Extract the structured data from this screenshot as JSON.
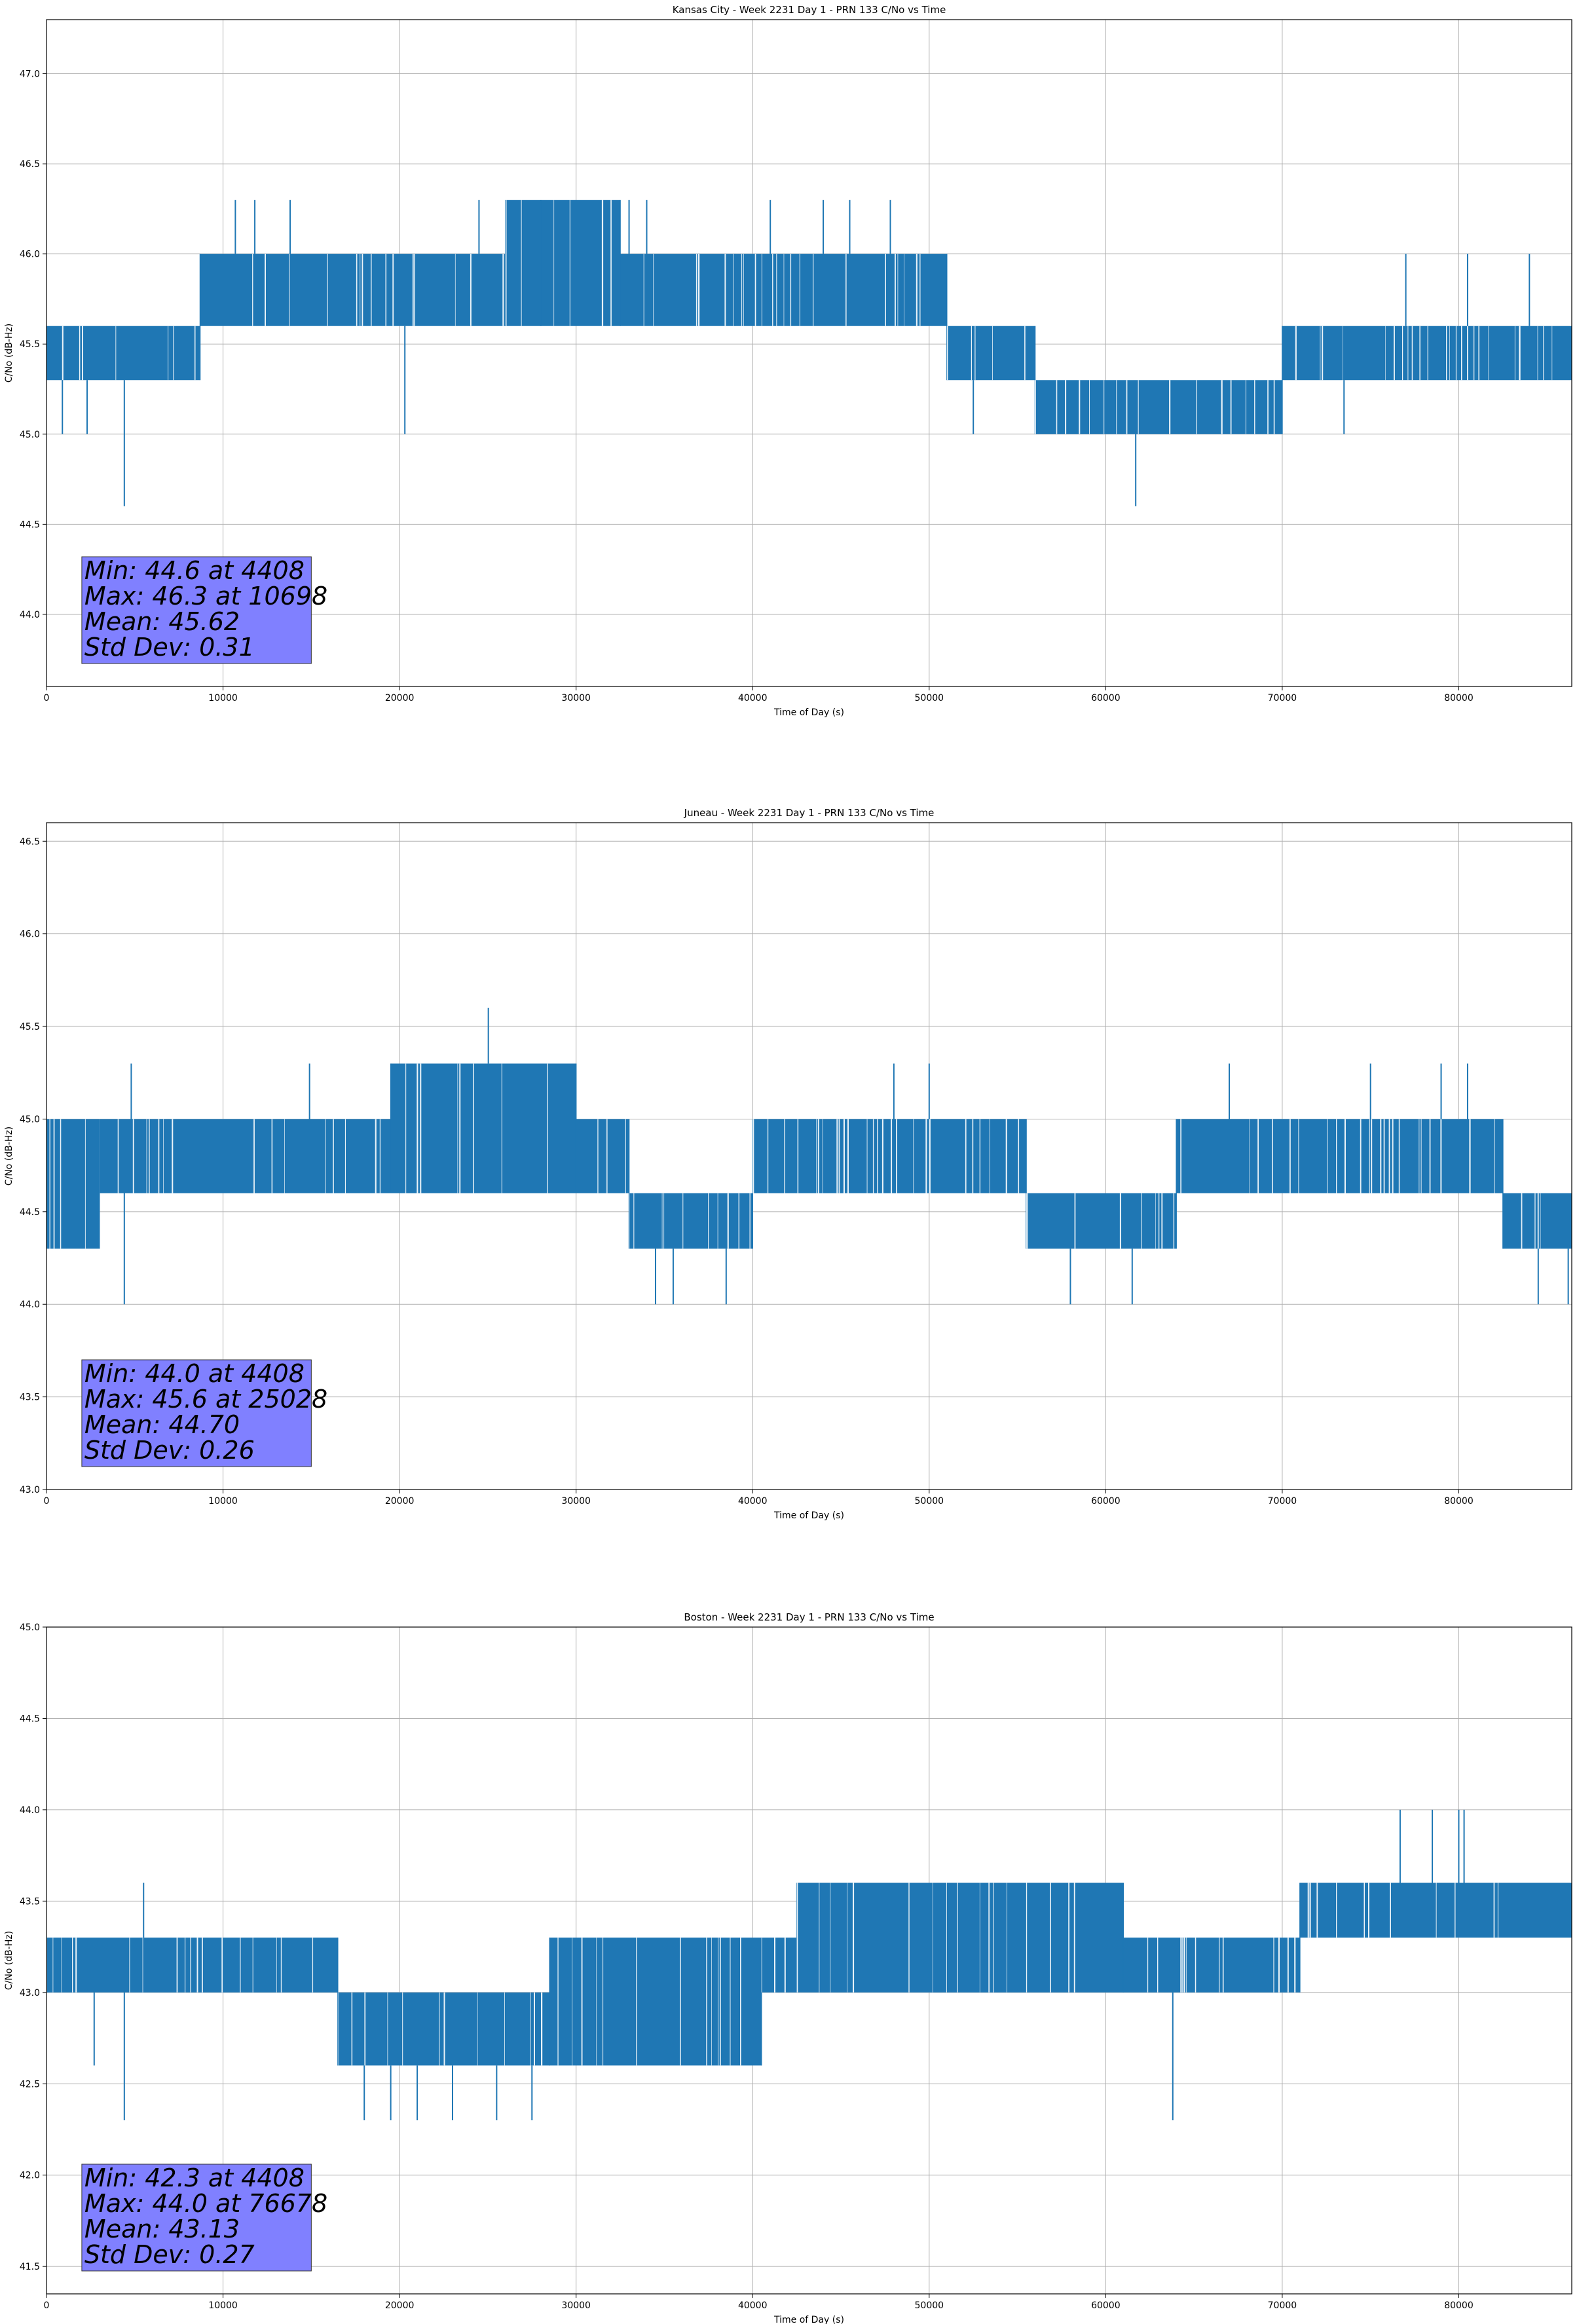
{
  "figure": {
    "background": "#ffffff",
    "line_color": "#1f77b4",
    "stats_box_color": "#8080ff"
  },
  "chart_data": [
    {
      "type": "line",
      "title": "Kansas City - Week 2231 Day 1 - PRN 133 C/No vs Time",
      "xlabel": "Time of Day (s)",
      "ylabel": "C/No (dB-Hz)",
      "xlim": [
        0,
        86400
      ],
      "ylim": [
        43.6,
        47.3
      ],
      "xticks": [
        0,
        10000,
        20000,
        30000,
        40000,
        50000,
        60000,
        70000,
        80000
      ],
      "yticks": [
        "44.0",
        "44.5",
        "45.0",
        "45.5",
        "46.0",
        "46.5",
        "47.0"
      ],
      "grid": true,
      "stats_text": [
        "Min: 44.6 at 4408",
        "Max: 46.3 at 10698",
        "Mean: 45.62",
        "Std Dev: 0.31"
      ],
      "segments": [
        {
          "x0": 0,
          "x1": 8700,
          "low": 45.3,
          "high": 45.6
        },
        {
          "x0": 8700,
          "x1": 24000,
          "low": 45.6,
          "high": 46.0
        },
        {
          "x0": 24000,
          "x1": 26000,
          "low": 45.6,
          "high": 46.0
        },
        {
          "x0": 26000,
          "x1": 32500,
          "low": 45.6,
          "high": 46.3
        },
        {
          "x0": 32500,
          "x1": 39000,
          "low": 45.6,
          "high": 46.0
        },
        {
          "x0": 39000,
          "x1": 47500,
          "low": 45.6,
          "high": 46.0
        },
        {
          "x0": 47500,
          "x1": 51000,
          "low": 45.6,
          "high": 46.0
        },
        {
          "x0": 51000,
          "x1": 56000,
          "low": 45.3,
          "high": 45.6
        },
        {
          "x0": 56000,
          "x1": 70000,
          "low": 45.0,
          "high": 45.3
        },
        {
          "x0": 70000,
          "x1": 86400,
          "low": 45.3,
          "high": 45.6
        }
      ],
      "spikes": [
        [
          900,
          45.0
        ],
        [
          2300,
          45.0
        ],
        [
          4408,
          44.6
        ],
        [
          10698,
          46.3
        ],
        [
          11800,
          46.3
        ],
        [
          13800,
          46.3
        ],
        [
          20300,
          45.0
        ],
        [
          24500,
          46.3
        ],
        [
          28000,
          46.3
        ],
        [
          33000,
          46.3
        ],
        [
          34000,
          46.3
        ],
        [
          41000,
          46.3
        ],
        [
          44000,
          46.3
        ],
        [
          45500,
          46.3
        ],
        [
          47800,
          46.3
        ],
        [
          52500,
          45.0
        ],
        [
          58500,
          45.0
        ],
        [
          61700,
          44.6
        ],
        [
          65500,
          45.0
        ],
        [
          73500,
          45.0
        ],
        [
          77000,
          46.0
        ],
        [
          80500,
          46.0
        ],
        [
          84000,
          46.0
        ]
      ]
    },
    {
      "type": "line",
      "title": "Juneau - Week 2231 Day 1 - PRN 133 C/No vs Time",
      "xlabel": "Time of Day (s)",
      "ylabel": "C/No (dB-Hz)",
      "xlim": [
        0,
        86400
      ],
      "ylim": [
        43.0,
        46.6
      ],
      "xticks": [
        0,
        10000,
        20000,
        30000,
        40000,
        50000,
        60000,
        70000,
        80000
      ],
      "yticks": [
        "43.0",
        "43.5",
        "44.0",
        "44.5",
        "45.0",
        "45.5",
        "46.0",
        "46.5"
      ],
      "grid": true,
      "stats_text": [
        "Min: 44.0 at 4408",
        "Max: 45.6 at 25028",
        "Mean: 44.70",
        "Std Dev: 0.26"
      ],
      "segments": [
        {
          "x0": 0,
          "x1": 3000,
          "low": 44.3,
          "high": 45.0
        },
        {
          "x0": 3000,
          "x1": 19500,
          "low": 44.6,
          "high": 45.0
        },
        {
          "x0": 19500,
          "x1": 30000,
          "low": 44.6,
          "high": 45.3
        },
        {
          "x0": 30000,
          "x1": 33000,
          "low": 44.6,
          "high": 45.0
        },
        {
          "x0": 33000,
          "x1": 40000,
          "low": 44.3,
          "high": 44.6
        },
        {
          "x0": 40000,
          "x1": 55500,
          "low": 44.6,
          "high": 45.0
        },
        {
          "x0": 55500,
          "x1": 64000,
          "low": 44.3,
          "high": 44.6
        },
        {
          "x0": 64000,
          "x1": 82500,
          "low": 44.6,
          "high": 45.0
        },
        {
          "x0": 82500,
          "x1": 86400,
          "low": 44.3,
          "high": 44.6
        }
      ],
      "spikes": [
        [
          4408,
          44.0
        ],
        [
          4800,
          45.3
        ],
        [
          14900,
          45.3
        ],
        [
          25028,
          45.6
        ],
        [
          34500,
          44.0
        ],
        [
          35500,
          44.0
        ],
        [
          38500,
          44.0
        ],
        [
          48000,
          45.3
        ],
        [
          50000,
          45.3
        ],
        [
          58000,
          44.0
        ],
        [
          61500,
          44.0
        ],
        [
          67000,
          45.3
        ],
        [
          75000,
          45.3
        ],
        [
          79000,
          45.3
        ],
        [
          80500,
          45.3
        ],
        [
          84500,
          44.0
        ],
        [
          86200,
          44.0
        ]
      ]
    },
    {
      "type": "line",
      "title": "Boston - Week 2231 Day 1 - PRN 133 C/No vs Time",
      "xlabel": "Time of Day (s)",
      "ylabel": "C/No (dB-Hz)",
      "xlim": [
        0,
        86400
      ],
      "ylim": [
        41.35,
        45.0
      ],
      "xticks": [
        0,
        10000,
        20000,
        30000,
        40000,
        50000,
        60000,
        70000,
        80000
      ],
      "yticks": [
        "41.5",
        "42.0",
        "42.5",
        "43.0",
        "43.5",
        "44.0",
        "44.5",
        "45.0"
      ],
      "grid": true,
      "stats_text": [
        "Min: 42.3 at 4408",
        "Max: 44.0 at 76678",
        "Mean: 43.13",
        "Std Dev: 0.27"
      ],
      "segments": [
        {
          "x0": 0,
          "x1": 16500,
          "low": 43.0,
          "high": 43.3
        },
        {
          "x0": 16500,
          "x1": 22500,
          "low": 42.6,
          "high": 43.0
        },
        {
          "x0": 22500,
          "x1": 28500,
          "low": 42.6,
          "high": 43.0
        },
        {
          "x0": 28500,
          "x1": 40500,
          "low": 42.6,
          "high": 43.3
        },
        {
          "x0": 40500,
          "x1": 42500,
          "low": 43.0,
          "high": 43.3
        },
        {
          "x0": 42500,
          "x1": 61000,
          "low": 43.0,
          "high": 43.6
        },
        {
          "x0": 61000,
          "x1": 71000,
          "low": 43.0,
          "high": 43.3
        },
        {
          "x0": 71000,
          "x1": 86400,
          "low": 43.3,
          "high": 43.6
        }
      ],
      "spikes": [
        [
          2700,
          42.6
        ],
        [
          4408,
          42.3
        ],
        [
          5500,
          43.6
        ],
        [
          18000,
          42.3
        ],
        [
          19500,
          42.3
        ],
        [
          21000,
          42.3
        ],
        [
          23000,
          42.3
        ],
        [
          25500,
          42.3
        ],
        [
          27500,
          42.3
        ],
        [
          63800,
          42.3
        ],
        [
          76678,
          44.0
        ],
        [
          78500,
          44.0
        ],
        [
          80000,
          44.0
        ],
        [
          80300,
          44.0
        ]
      ]
    }
  ]
}
